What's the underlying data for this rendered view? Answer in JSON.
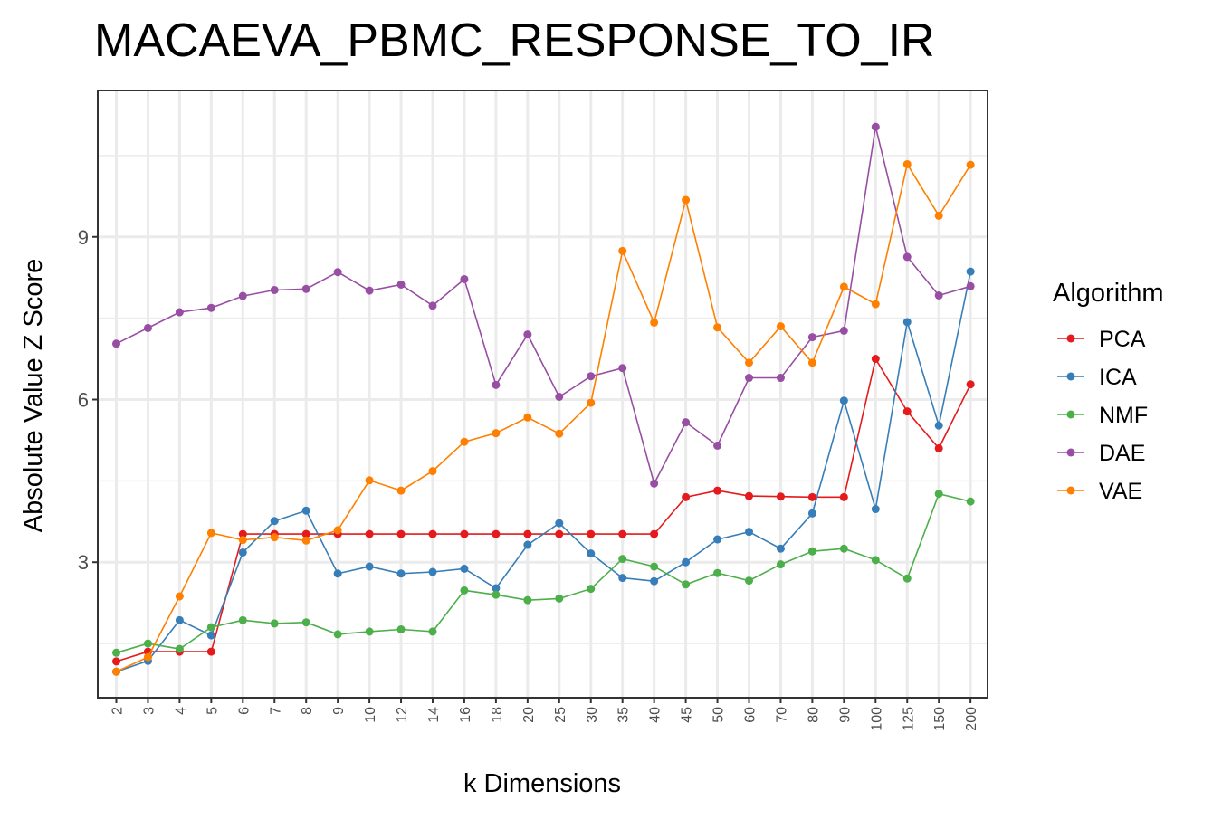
{
  "chart_data": {
    "type": "line",
    "title": "MACAEVA_PBMC_RESPONSE_TO_IR",
    "xlabel": "k Dimensions",
    "ylabel": "Absolute Value Z Score",
    "categories": [
      "2",
      "3",
      "4",
      "5",
      "6",
      "7",
      "8",
      "9",
      "10",
      "12",
      "14",
      "16",
      "18",
      "20",
      "25",
      "30",
      "35",
      "40",
      "45",
      "50",
      "60",
      "70",
      "80",
      "90",
      "100",
      "125",
      "150",
      "200"
    ],
    "yticks": [
      3,
      6,
      9
    ],
    "ylim": [
      0.5,
      11.7
    ],
    "grid": true,
    "legend": {
      "title": "Algorithm",
      "position": "right"
    },
    "series": [
      {
        "name": "PCA",
        "color": "#e41a1c",
        "values": [
          1.17,
          1.35,
          1.35,
          1.35,
          3.52,
          3.52,
          3.52,
          3.52,
          3.52,
          3.52,
          3.52,
          3.52,
          3.52,
          3.52,
          3.52,
          3.52,
          3.52,
          3.52,
          4.2,
          4.32,
          4.22,
          4.21,
          4.2,
          4.2,
          6.75,
          5.78,
          5.1,
          6.28
        ]
      },
      {
        "name": "ICA",
        "color": "#377eb8",
        "values": [
          0.98,
          1.18,
          1.93,
          1.65,
          3.18,
          3.76,
          3.95,
          2.79,
          2.92,
          2.79,
          2.82,
          2.88,
          2.52,
          3.32,
          3.72,
          3.16,
          2.71,
          2.65,
          3.0,
          3.42,
          3.56,
          3.25,
          3.9,
          5.98,
          3.98,
          7.43,
          5.52,
          8.36
        ]
      },
      {
        "name": "NMF",
        "color": "#4daf4a",
        "values": [
          1.33,
          1.5,
          1.4,
          1.8,
          1.93,
          1.87,
          1.89,
          1.67,
          1.72,
          1.76,
          1.72,
          2.48,
          2.4,
          2.3,
          2.33,
          2.51,
          3.06,
          2.92,
          2.59,
          2.8,
          2.66,
          2.96,
          3.2,
          3.25,
          3.04,
          2.7,
          4.26,
          4.12
        ]
      },
      {
        "name": "DAE",
        "color": "#984ea3",
        "values": [
          7.03,
          7.32,
          7.61,
          7.69,
          7.91,
          8.02,
          8.04,
          8.35,
          8.01,
          8.12,
          7.73,
          8.22,
          6.27,
          7.2,
          6.05,
          6.43,
          6.58,
          4.45,
          5.58,
          5.15,
          6.4,
          6.4,
          7.15,
          7.27,
          11.03,
          8.63,
          7.92,
          8.09
        ]
      },
      {
        "name": "VAE",
        "color": "#ff7f00",
        "values": [
          0.98,
          1.25,
          2.37,
          3.54,
          3.41,
          3.46,
          3.4,
          3.59,
          4.51,
          4.32,
          4.68,
          5.22,
          5.38,
          5.67,
          5.37,
          5.94,
          8.74,
          7.42,
          9.68,
          7.33,
          6.68,
          7.35,
          6.68,
          8.08,
          7.76,
          10.34,
          9.39,
          10.33
        ]
      }
    ]
  }
}
